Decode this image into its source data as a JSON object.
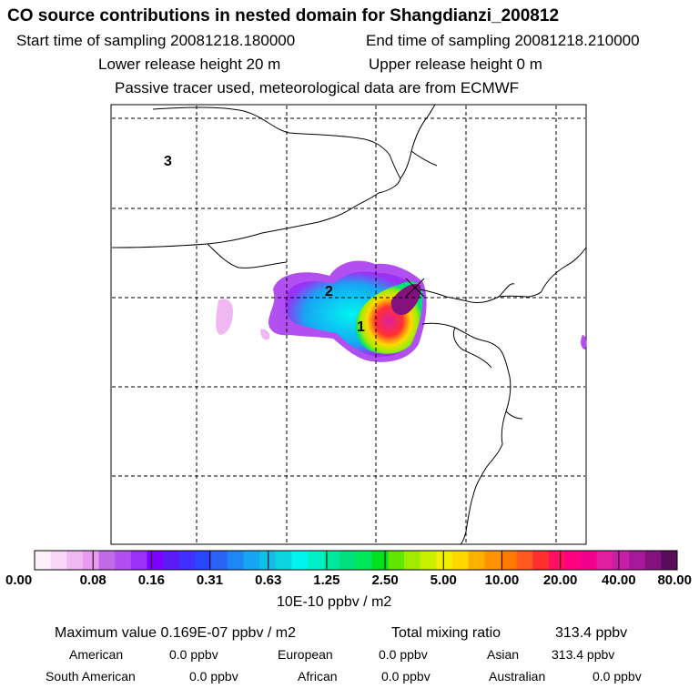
{
  "header": {
    "title": "CO  source contributions in nested domain for Shangdianzi_200812",
    "start_label": "Start time of sampling 20081218.180000",
    "end_label": "End time of sampling 20081218.210000",
    "lower_label": "Lower release height   20 m",
    "upper_label": "Upper release height    0 m",
    "tracer_note": "Passive tracer used, meteorological data are from ECMWF"
  },
  "map": {
    "annotations": [
      "1",
      "2",
      "3"
    ]
  },
  "chart_data": {
    "type": "heatmap",
    "title": "CO  source contributions in nested domain for Shangdianzi_200812",
    "colorbar": {
      "ticks": [
        "0.00",
        "0.08",
        "0.16",
        "0.31",
        "0.63",
        "1.25",
        "2.50",
        "5.00",
        "10.00",
        "20.00",
        "40.00",
        "80.00"
      ],
      "unit": "10E-10 ppbv / m2",
      "colors": [
        "#fdf0fd",
        "#f7d6f8",
        "#f0b8f3",
        "#e99aef",
        "#c06ae8",
        "#b14ff0",
        "#9b30f6",
        "#8000ff",
        "#5b1bf5",
        "#4030ff",
        "#2a46ff",
        "#2b63f7",
        "#1f86f6",
        "#17a6f3",
        "#12bde8",
        "#0fd3e0",
        "#00f4f0",
        "#00f0c8",
        "#00e8a0",
        "#00e07a",
        "#00e85a",
        "#00e020",
        "#60e400",
        "#a0ec00",
        "#c8f000",
        "#f0f000",
        "#ffd800",
        "#ffb000",
        "#ff9400",
        "#ff7a00",
        "#ff5a20",
        "#ff3030",
        "#ff1060",
        "#ff0080",
        "#f0008c",
        "#e01ea0",
        "#c81ea8",
        "#a8189c",
        "#84127e",
        "#5a0c5a"
      ]
    }
  },
  "stats": {
    "max_label": "Maximum value  0.169E-07 ppbv / m2",
    "total_label": "Total mixing ratio",
    "total_value": "313.4 ppbv",
    "american_label": "American",
    "american_value": "0.0 ppbv",
    "european_label": "European",
    "european_value": "0.0 ppbv",
    "asian_label": "Asian",
    "asian_value": "313.4 ppbv",
    "south_american_label": "South American",
    "south_american_value": "0.0 ppbv",
    "african_label": "African",
    "african_value": "0.0 ppbv",
    "australian_label": "Australian",
    "australian_value": "0.0 ppbv"
  }
}
